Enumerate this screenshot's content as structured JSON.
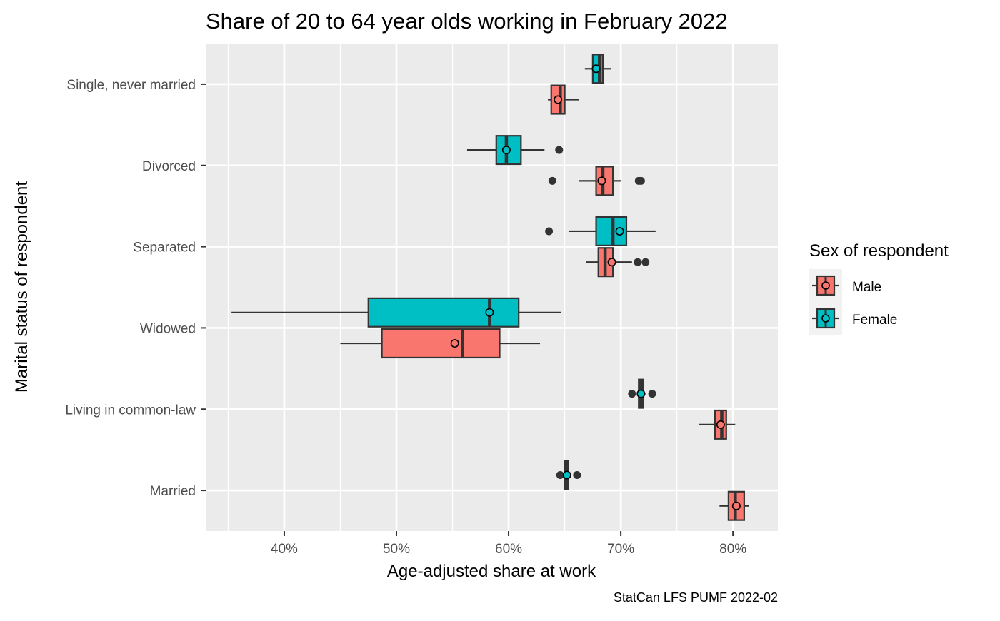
{
  "chart_data": {
    "type": "boxplot",
    "orientation": "horizontal",
    "title": "Share of 20 to 64 year olds working in February 2022",
    "xlabel": "Age-adjusted share at work",
    "ylabel": "Marital status of respondent",
    "caption": "StatCan LFS PUMF 2022-02",
    "xlim": [
      33,
      84
    ],
    "x_ticks": [
      40,
      50,
      60,
      70,
      80
    ],
    "x_tick_labels": [
      "40%",
      "50%",
      "60%",
      "70%",
      "80%"
    ],
    "grid": true,
    "categories": [
      "Single, never married",
      "Divorced",
      "Separated",
      "Widowed",
      "Living in common-law",
      "Married"
    ],
    "legend": {
      "title": "Sex of respondent",
      "position": "right",
      "entries": [
        {
          "label": "Male",
          "color": "#F8766D"
        },
        {
          "label": "Female",
          "color": "#00BFC4"
        }
      ]
    },
    "series": [
      {
        "name": "Male",
        "color": "#F8766D",
        "boxes": [
          {
            "category": "Single, never married",
            "whisker_low": 63.5,
            "q1": 63.8,
            "median": 64.6,
            "q3": 65.0,
            "whisker_high": 66.3,
            "mean": 64.4,
            "outliers": []
          },
          {
            "category": "Divorced",
            "whisker_low": 66.3,
            "q1": 67.8,
            "median": 68.4,
            "q3": 69.3,
            "whisker_high": 70.0,
            "mean": 68.3,
            "outliers": [
              63.9,
              71.6,
              71.8
            ]
          },
          {
            "category": "Separated",
            "whisker_low": 66.9,
            "q1": 68.0,
            "median": 68.6,
            "q3": 69.3,
            "whisker_high": 71.0,
            "mean": 69.2,
            "outliers": [
              71.5,
              72.2
            ]
          },
          {
            "category": "Widowed",
            "whisker_low": 45.0,
            "q1": 48.7,
            "median": 55.9,
            "q3": 59.2,
            "whisker_high": 62.8,
            "mean": 55.2,
            "outliers": []
          },
          {
            "category": "Living in common-law",
            "whisker_low": 77.0,
            "q1": 78.4,
            "median": 79.0,
            "q3": 79.4,
            "whisker_high": 80.2,
            "mean": 78.9,
            "outliers": []
          },
          {
            "category": "Married",
            "whisker_low": 78.8,
            "q1": 79.6,
            "median": 80.2,
            "q3": 81.0,
            "whisker_high": 81.4,
            "mean": 80.3,
            "outliers": []
          }
        ]
      },
      {
        "name": "Female",
        "color": "#00BFC4",
        "boxes": [
          {
            "category": "Single, never married",
            "whisker_low": 66.8,
            "q1": 67.5,
            "median": 68.1,
            "q3": 68.4,
            "whisker_high": 69.1,
            "mean": 67.8,
            "outliers": []
          },
          {
            "category": "Divorced",
            "whisker_low": 56.3,
            "q1": 58.9,
            "median": 59.8,
            "q3": 61.1,
            "whisker_high": 63.2,
            "mean": 59.8,
            "outliers": [
              64.5
            ]
          },
          {
            "category": "Separated",
            "whisker_low": 65.4,
            "q1": 67.8,
            "median": 69.3,
            "q3": 70.5,
            "whisker_high": 73.1,
            "mean": 69.9,
            "outliers": [
              63.6
            ]
          },
          {
            "category": "Widowed",
            "whisker_low": 35.3,
            "q1": 47.5,
            "median": 58.3,
            "q3": 60.9,
            "whisker_high": 64.7,
            "mean": 58.3,
            "outliers": []
          },
          {
            "category": "Living in common-law",
            "whisker_low": 71.5,
            "q1": 71.6,
            "median": 71.8,
            "q3": 72.0,
            "whisker_high": 72.2,
            "mean": 71.8,
            "outliers": [
              71.0,
              72.8
            ]
          },
          {
            "category": "Married",
            "whisker_low": 64.8,
            "q1": 65.0,
            "median": 65.2,
            "q3": 65.3,
            "whisker_high": 65.5,
            "mean": 65.2,
            "outliers": [
              64.6,
              66.1
            ]
          }
        ]
      }
    ]
  }
}
